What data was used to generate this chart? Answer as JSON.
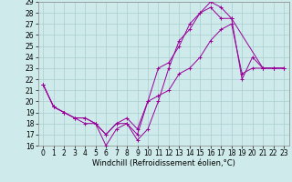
{
  "xlabel": "Windchill (Refroidissement éolien,°C)",
  "xlim": [
    -0.5,
    23.5
  ],
  "ylim": [
    16,
    29
  ],
  "xticks": [
    0,
    1,
    2,
    3,
    4,
    5,
    6,
    7,
    8,
    9,
    10,
    11,
    12,
    13,
    14,
    15,
    16,
    17,
    18,
    19,
    20,
    21,
    22,
    23
  ],
  "yticks": [
    16,
    17,
    18,
    19,
    20,
    21,
    22,
    23,
    24,
    25,
    26,
    27,
    28,
    29
  ],
  "bg_color": "#ceeaea",
  "grid_color": "#aacece",
  "line_color": "#990099",
  "line1_x": [
    0,
    1,
    2,
    3,
    4,
    5,
    6,
    7,
    8,
    9,
    10,
    11,
    12,
    13,
    14,
    15,
    16,
    17,
    18,
    21,
    22,
    23
  ],
  "line1_y": [
    21.5,
    19.5,
    19.0,
    18.5,
    18.0,
    18.0,
    16.0,
    17.5,
    18.0,
    16.5,
    17.5,
    20.0,
    23.0,
    25.5,
    26.5,
    28.0,
    29.0,
    28.5,
    27.5,
    23.0,
    23.0,
    23.0
  ],
  "line2_x": [
    0,
    1,
    2,
    3,
    4,
    5,
    6,
    7,
    8,
    9,
    10,
    11,
    12,
    13,
    14,
    15,
    16,
    17,
    18,
    19,
    20,
    21,
    22,
    23
  ],
  "line2_y": [
    21.5,
    19.5,
    19.0,
    18.5,
    18.5,
    18.0,
    17.0,
    18.0,
    18.0,
    17.0,
    20.0,
    23.0,
    23.5,
    25.0,
    27.0,
    28.0,
    28.5,
    27.5,
    27.5,
    22.0,
    24.0,
    23.0,
    23.0,
    23.0
  ],
  "line3_x": [
    0,
    1,
    2,
    3,
    4,
    5,
    6,
    7,
    8,
    9,
    10,
    11,
    12,
    13,
    14,
    15,
    16,
    17,
    18,
    19,
    20,
    21,
    22,
    23
  ],
  "line3_y": [
    21.5,
    19.5,
    19.0,
    18.5,
    18.5,
    18.0,
    17.0,
    18.0,
    18.5,
    17.5,
    20.0,
    20.5,
    21.0,
    22.5,
    23.0,
    24.0,
    25.5,
    26.5,
    27.0,
    22.5,
    23.0,
    23.0,
    23.0,
    23.0
  ],
  "marker": "+",
  "tick_fontsize": 5.5,
  "xlabel_fontsize": 6.0
}
